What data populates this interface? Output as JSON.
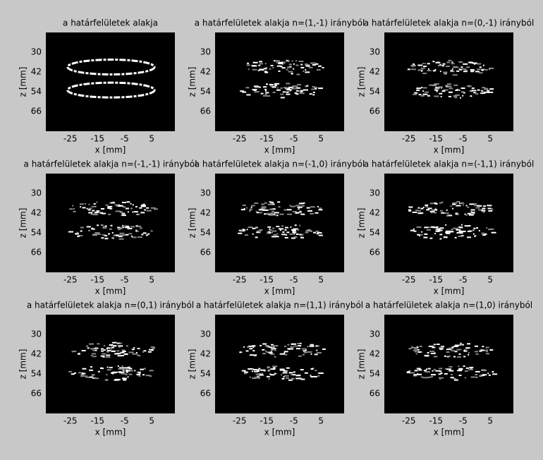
{
  "chart_data": [
    {
      "type": "image",
      "title": "a határfelületek alakja",
      "x_label": "x [mm]",
      "y_label": "z [mm]",
      "xlim": [
        -34,
        13.5
      ],
      "ylim": [
        18,
        78
      ],
      "y_reversed": true,
      "xticks": [
        -25,
        -15,
        -5,
        5
      ],
      "yticks": [
        30,
        42,
        54,
        66
      ]
    },
    {
      "type": "image",
      "title": "a határfelületek alakja n=(1,-1) irányból",
      "x_label": "x [mm]",
      "y_label": "z [mm]",
      "xlim": [
        -34,
        13.5
      ],
      "ylim": [
        18,
        78
      ],
      "y_reversed": true,
      "xticks": [
        -25,
        -15,
        -5,
        5
      ],
      "yticks": [
        30,
        42,
        54,
        66
      ]
    },
    {
      "type": "image",
      "title": "a határfelületek alakja n=(0,-1) irányból",
      "x_label": "x [mm]",
      "y_label": "z [mm]",
      "xlim": [
        -34,
        13.5
      ],
      "ylim": [
        18,
        78
      ],
      "y_reversed": true,
      "xticks": [
        -25,
        -15,
        -5,
        5
      ],
      "yticks": [
        30,
        42,
        54,
        66
      ]
    },
    {
      "type": "image",
      "title": "a határfelületek alakja n=(-1,-1) irányból",
      "x_label": "x [mm]",
      "y_label": "z [mm]",
      "xlim": [
        -34,
        13.5
      ],
      "ylim": [
        18,
        78
      ],
      "y_reversed": true,
      "xticks": [
        -25,
        -15,
        -5,
        5
      ],
      "yticks": [
        30,
        42,
        54,
        66
      ]
    },
    {
      "type": "image",
      "title": "a határfelületek alakja n=(-1,0) irányból",
      "x_label": "x [mm]",
      "y_label": "z [mm]",
      "xlim": [
        -34,
        13.5
      ],
      "ylim": [
        18,
        78
      ],
      "y_reversed": true,
      "xticks": [
        -25,
        -15,
        -5,
        5
      ],
      "yticks": [
        30,
        42,
        54,
        66
      ]
    },
    {
      "type": "image",
      "title": "a határfelületek alakja n=(-1,1) irányból",
      "x_label": "x [mm]",
      "y_label": "z [mm]",
      "xlim": [
        -34,
        13.5
      ],
      "ylim": [
        18,
        78
      ],
      "y_reversed": true,
      "xticks": [
        -25,
        -15,
        -5,
        5
      ],
      "yticks": [
        30,
        42,
        54,
        66
      ]
    },
    {
      "type": "image",
      "title": "a határfelületek alakja n=(0,1) irányból",
      "x_label": "x [mm]",
      "y_label": "z [mm]",
      "xlim": [
        -34,
        13.5
      ],
      "ylim": [
        18,
        78
      ],
      "y_reversed": true,
      "xticks": [
        -25,
        -15,
        -5,
        5
      ],
      "yticks": [
        30,
        42,
        54,
        66
      ]
    },
    {
      "type": "image",
      "title": "a határfelületek alakja n=(1,1) irányból",
      "x_label": "x [mm]",
      "y_label": "z [mm]",
      "xlim": [
        -34,
        13.5
      ],
      "ylim": [
        18,
        78
      ],
      "y_reversed": true,
      "xticks": [
        -25,
        -15,
        -5,
        5
      ],
      "yticks": [
        30,
        42,
        54,
        66
      ]
    },
    {
      "type": "image",
      "title": "a határfelületek alakja n=(1,0) irányból",
      "x_label": "x [mm]",
      "y_label": "z [mm]",
      "xlim": [
        -34,
        13.5
      ],
      "ylim": [
        18,
        78
      ],
      "y_reversed": true,
      "xticks": [
        -25,
        -15,
        -5,
        5
      ],
      "yticks": [
        30,
        42,
        54,
        66
      ]
    }
  ]
}
